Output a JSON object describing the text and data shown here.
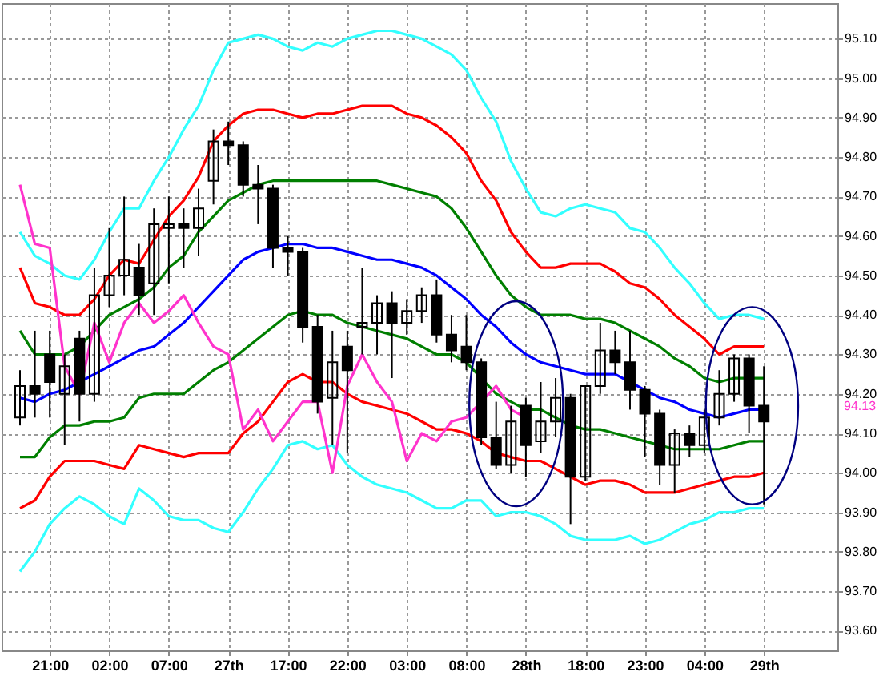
{
  "chart_data": {
    "type": "candlestick",
    "categories": [
      null,
      null,
      "21:00",
      null,
      null,
      null,
      "02:00",
      null,
      null,
      null,
      "07:00",
      null,
      null,
      null,
      "27th",
      null,
      null,
      null,
      "17:00",
      null,
      null,
      null,
      "22:00",
      null,
      null,
      null,
      "03:00",
      null,
      null,
      null,
      "08:00",
      null,
      null,
      null,
      "28th",
      null,
      null,
      null,
      "18:00",
      null,
      null,
      null,
      "23:00",
      null,
      null,
      null,
      "04:00",
      null,
      null,
      null,
      "29th"
    ],
    "ohlc": [
      [
        94.14,
        94.26,
        94.12,
        94.22
      ],
      [
        94.22,
        94.36,
        94.14,
        94.2
      ],
      [
        94.3,
        94.36,
        94.14,
        94.23
      ],
      [
        94.2,
        94.3,
        94.07,
        94.27
      ],
      [
        94.34,
        94.36,
        94.13,
        94.2
      ],
      [
        94.2,
        94.52,
        94.18,
        94.45
      ],
      [
        94.45,
        94.62,
        94.42,
        94.5
      ],
      [
        94.5,
        94.7,
        94.45,
        94.54
      ],
      [
        94.52,
        94.58,
        94.4,
        94.45
      ],
      [
        94.48,
        94.67,
        94.4,
        94.63
      ],
      [
        94.62,
        94.7,
        94.48,
        94.63
      ],
      [
        94.63,
        94.67,
        94.52,
        94.62
      ],
      [
        94.62,
        94.72,
        94.55,
        94.67
      ],
      [
        94.74,
        94.87,
        94.68,
        94.84
      ],
      [
        94.84,
        94.89,
        94.78,
        94.83
      ],
      [
        94.83,
        94.84,
        94.7,
        94.73
      ],
      [
        94.73,
        94.78,
        94.63,
        94.72
      ],
      [
        94.72,
        94.73,
        94.52,
        94.57
      ],
      [
        94.57,
        94.6,
        94.5,
        94.56
      ],
      [
        94.56,
        94.57,
        94.33,
        94.37
      ],
      [
        94.37,
        94.4,
        94.15,
        94.18
      ],
      [
        94.19,
        94.36,
        94.07,
        94.28
      ],
      [
        94.32,
        94.36,
        94.05,
        94.26
      ],
      [
        94.37,
        94.52,
        94.3,
        94.38
      ],
      [
        94.38,
        94.45,
        94.3,
        94.43
      ],
      [
        94.43,
        94.46,
        94.24,
        94.38
      ],
      [
        94.38,
        94.44,
        94.35,
        94.41
      ],
      [
        94.41,
        94.47,
        94.38,
        94.45
      ],
      [
        94.45,
        94.49,
        94.33,
        94.35
      ],
      [
        94.35,
        94.4,
        94.28,
        94.31
      ],
      [
        94.32,
        94.4,
        94.26,
        94.28
      ],
      [
        94.28,
        94.29,
        94.07,
        94.09
      ],
      [
        94.09,
        94.18,
        94.01,
        94.02
      ],
      [
        94.02,
        94.17,
        94,
        94.13
      ],
      [
        94.17,
        94.19,
        93.99,
        94.07
      ],
      [
        94.08,
        94.23,
        94.05,
        94.13
      ],
      [
        94.13,
        94.24,
        94.09,
        94.19
      ],
      [
        94.19,
        94.2,
        93.87,
        93.99
      ],
      [
        93.99,
        94.22,
        93.98,
        94.22
      ],
      [
        94.22,
        94.38,
        94.2,
        94.31
      ],
      [
        94.31,
        94.36,
        94.25,
        94.28
      ],
      [
        94.28,
        94.36,
        94.16,
        94.21
      ],
      [
        94.21,
        94.22,
        94.04,
        94.15
      ],
      [
        94.15,
        94.16,
        93.97,
        94.02
      ],
      [
        94.02,
        94.11,
        93.95,
        94.1
      ],
      [
        94.1,
        94.12,
        94.04,
        94.07
      ],
      [
        94.07,
        94.16,
        94.05,
        94.14
      ],
      [
        94.14,
        94.26,
        94.12,
        94.2
      ],
      [
        94.2,
        94.3,
        94.18,
        94.29
      ],
      [
        94.29,
        94.3,
        94.1,
        94.17
      ],
      [
        94.17,
        94.27,
        93.92,
        94.13
      ]
    ],
    "series": [
      {
        "type": "line",
        "color": "#33ffff",
        "values": [
          94.61,
          94.55,
          94.53,
          94.5,
          94.49,
          94.54,
          94.61,
          94.67,
          94.67,
          94.74,
          94.8,
          94.87,
          94.93,
          95.02,
          95.09,
          95.1,
          95.11,
          95.1,
          95.08,
          95.07,
          95.09,
          95.08,
          95.1,
          95.11,
          95.12,
          95.12,
          95.11,
          95.1,
          95.08,
          95.06,
          95.02,
          94.95,
          94.89,
          94.79,
          94.72,
          94.66,
          94.65,
          94.67,
          94.68,
          94.67,
          94.66,
          94.62,
          94.61,
          94.57,
          94.52,
          94.48,
          94.43,
          94.39,
          94.4,
          94.4,
          94.39
        ]
      },
      {
        "type": "line",
        "color": "#ff0000",
        "values": [
          94.52,
          94.43,
          94.42,
          94.4,
          94.4,
          94.44,
          94.5,
          94.54,
          94.53,
          94.59,
          94.65,
          94.69,
          94.75,
          94.84,
          94.88,
          94.91,
          94.92,
          94.92,
          94.91,
          94.9,
          94.91,
          94.91,
          94.92,
          94.93,
          94.93,
          94.93,
          94.91,
          94.9,
          94.88,
          94.85,
          94.81,
          94.74,
          94.69,
          94.61,
          94.56,
          94.52,
          94.52,
          94.53,
          94.53,
          94.53,
          94.51,
          94.48,
          94.47,
          94.44,
          94.4,
          94.37,
          94.34,
          94.3,
          94.32,
          94.32,
          94.32
        ]
      },
      {
        "type": "line",
        "color": "#007f00",
        "values": [
          94.36,
          94.3,
          94.3,
          94.3,
          94.32,
          94.36,
          94.4,
          94.42,
          94.44,
          94.47,
          94.52,
          94.55,
          94.61,
          94.65,
          94.69,
          94.71,
          94.73,
          94.74,
          94.74,
          94.74,
          94.74,
          94.74,
          94.74,
          94.74,
          94.74,
          94.73,
          94.72,
          94.71,
          94.7,
          94.67,
          94.62,
          94.56,
          94.5,
          94.45,
          94.42,
          94.4,
          94.4,
          94.4,
          94.39,
          94.39,
          94.38,
          94.36,
          94.34,
          94.32,
          94.29,
          94.27,
          94.24,
          94.23,
          94.24,
          94.24,
          94.24
        ]
      },
      {
        "type": "line",
        "color": "#0000ff",
        "values": [
          94.19,
          94.18,
          94.2,
          94.21,
          94.23,
          94.25,
          94.27,
          94.29,
          94.31,
          94.32,
          94.35,
          94.38,
          94.42,
          94.46,
          94.5,
          94.54,
          94.56,
          94.57,
          94.58,
          94.58,
          94.57,
          94.57,
          94.56,
          94.55,
          94.54,
          94.54,
          94.53,
          94.52,
          94.5,
          94.47,
          94.44,
          94.4,
          94.37,
          94.33,
          94.3,
          94.28,
          94.27,
          94.26,
          94.25,
          94.25,
          94.25,
          94.23,
          94.21,
          94.19,
          94.18,
          94.16,
          94.15,
          94.14,
          94.15,
          94.16,
          94.16
        ]
      },
      {
        "type": "line",
        "color": "#007f00",
        "values": [
          94.04,
          94.04,
          94.09,
          94.12,
          94.12,
          94.13,
          94.13,
          94.14,
          94.19,
          94.2,
          94.2,
          94.2,
          94.23,
          94.26,
          94.28,
          94.31,
          94.34,
          94.37,
          94.4,
          94.41,
          94.4,
          94.4,
          94.38,
          94.37,
          94.36,
          94.35,
          94.34,
          94.32,
          94.3,
          94.3,
          94.28,
          94.24,
          94.2,
          94.18,
          94.16,
          94.16,
          94.14,
          94.12,
          94.11,
          94.11,
          94.1,
          94.09,
          94.08,
          94.07,
          94.06,
          94.06,
          94.06,
          94.06,
          94.07,
          94.08,
          94.08
        ]
      },
      {
        "type": "line",
        "color": "#ff0000",
        "values": [
          93.91,
          93.93,
          93.99,
          94.03,
          94.03,
          94.03,
          94.02,
          94.01,
          94.07,
          94.06,
          94.05,
          94.04,
          94.05,
          94.05,
          94.05,
          94.1,
          94.13,
          94.18,
          94.23,
          94.25,
          94.23,
          94.23,
          94.2,
          94.18,
          94.17,
          94.16,
          94.15,
          94.13,
          94.11,
          94.11,
          94.1,
          94.08,
          94.05,
          94.04,
          94.03,
          94.03,
          94.01,
          93.99,
          93.97,
          93.98,
          93.98,
          93.97,
          93.95,
          93.95,
          93.95,
          93.96,
          93.97,
          93.98,
          93.99,
          93.99,
          94
        ]
      },
      {
        "type": "line",
        "color": "#33ffff",
        "values": [
          93.75,
          93.8,
          93.87,
          93.91,
          93.94,
          93.92,
          93.89,
          93.87,
          93.96,
          93.93,
          93.89,
          93.88,
          93.88,
          93.86,
          93.85,
          93.9,
          93.96,
          94.01,
          94.07,
          94.08,
          94.06,
          94.07,
          94.02,
          93.99,
          93.97,
          93.96,
          93.95,
          93.93,
          93.91,
          93.91,
          93.93,
          93.93,
          93.89,
          93.9,
          93.9,
          93.89,
          93.87,
          93.84,
          93.83,
          93.83,
          93.83,
          93.84,
          93.82,
          93.83,
          93.85,
          93.87,
          93.88,
          93.9,
          93.9,
          93.91,
          93.91
        ]
      },
      {
        "type": "line",
        "color": "#ff33cc",
        "values": [
          94.73,
          94.58,
          94.57,
          94.27,
          94.2,
          94.38,
          94.28,
          94.38,
          94.43,
          94.38,
          94.41,
          94.45,
          94.38,
          94.32,
          94.3,
          94.11,
          94.16,
          94.08,
          94.13,
          94.18,
          94.18,
          94,
          94.22,
          94.3,
          94.23,
          94.18,
          94.03,
          94.1,
          94.08,
          94.13,
          94.14,
          94.18,
          94.22,
          94.16,
          94.14,
          null,
          null,
          null,
          null,
          null,
          null,
          null,
          null,
          null,
          null,
          null,
          null,
          null,
          null,
          null,
          null
        ]
      }
    ],
    "ylim": [
      93.55,
      95.19
    ],
    "yticks": [
      {
        "value": 93.6,
        "label": "93.60"
      },
      {
        "value": 93.7,
        "label": "93.70"
      },
      {
        "value": 93.8,
        "label": "93.80"
      },
      {
        "value": 93.9,
        "label": "93.90"
      },
      {
        "value": 94,
        "label": "94.00"
      },
      {
        "value": 94.1,
        "label": "94.10"
      },
      {
        "value": 94.2,
        "label": "94.20"
      },
      {
        "value": 94.3,
        "label": "94.30"
      },
      {
        "value": 94.4,
        "label": "94.40"
      },
      {
        "value": 94.5,
        "label": "94.50"
      },
      {
        "value": 94.6,
        "label": "94.60"
      },
      {
        "value": 94.7,
        "label": "94.70"
      },
      {
        "value": 94.8,
        "label": "94.80"
      },
      {
        "value": 94.9,
        "label": "94.90"
      },
      {
        "value": 95,
        "label": "95.00"
      },
      {
        "value": 95.1,
        "label": "95.10"
      }
    ],
    "annotations": [
      "94.13"
    ],
    "grid": true
  }
}
